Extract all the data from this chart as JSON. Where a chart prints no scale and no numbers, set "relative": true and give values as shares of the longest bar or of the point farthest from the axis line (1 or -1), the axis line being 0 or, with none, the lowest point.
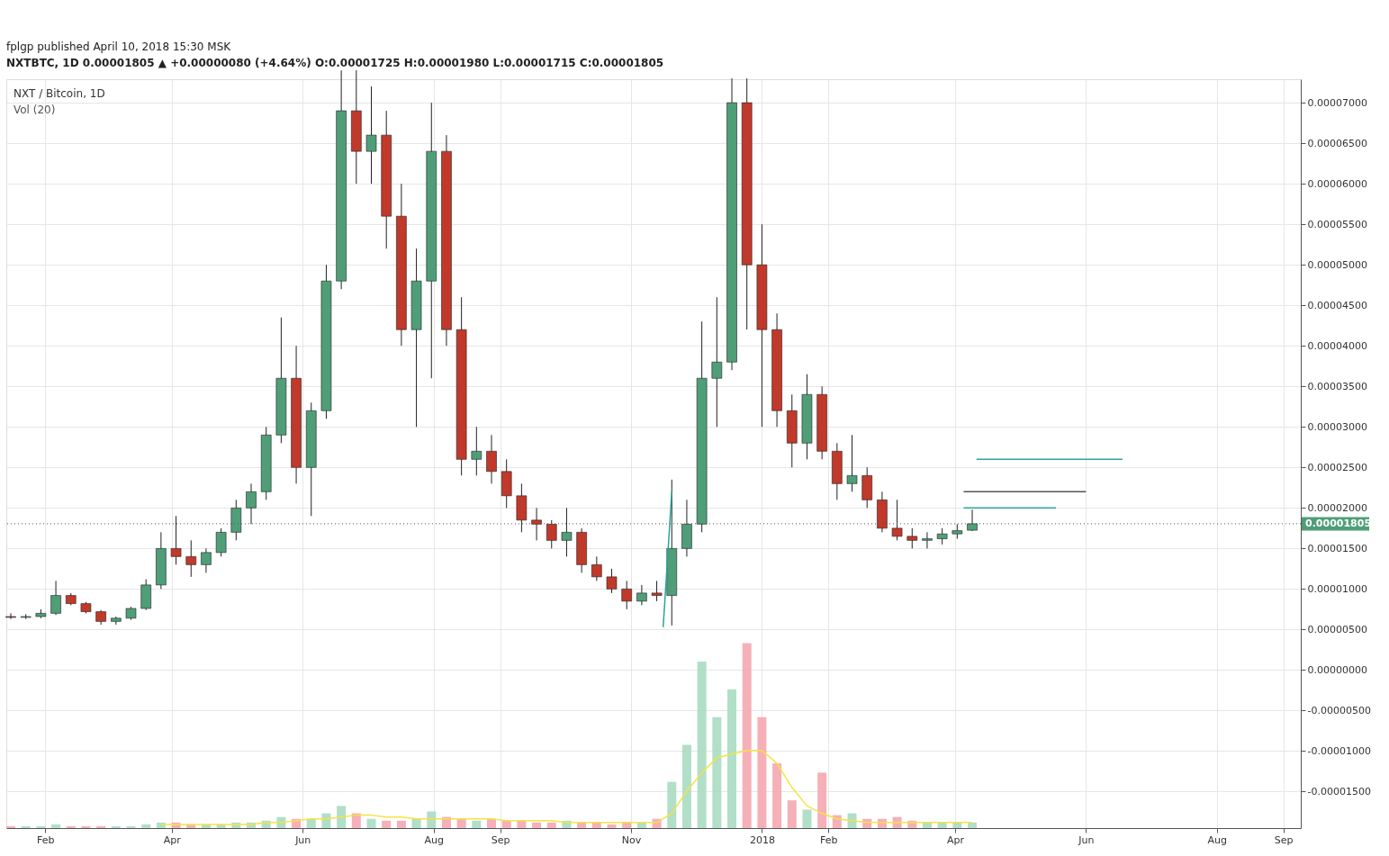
{
  "chart_data": [
    {
      "type": "candlestick",
      "title": "NXT / Bitcoin, 1D",
      "annotations": [
        "fplgp published April 10, 2018 15:30 MSK",
        "NXTBTC, 1D 0.00001805 ▲ +0.00000080 (+4.64%) O:0.00001725 H:0.00001980 L:0.00001715 C:0.00001805"
      ],
      "x": [
        "2017-01-16",
        "2017-01-23",
        "2017-01-30",
        "2017-02-06",
        "2017-02-13",
        "2017-02-20",
        "2017-02-27",
        "2017-03-06",
        "2017-03-13",
        "2017-03-20",
        "2017-03-27",
        "2017-04-03",
        "2017-04-10",
        "2017-04-17",
        "2017-04-24",
        "2017-05-01",
        "2017-05-08",
        "2017-05-15",
        "2017-05-22",
        "2017-05-29",
        "2017-06-05",
        "2017-06-12",
        "2017-06-19",
        "2017-06-26",
        "2017-07-03",
        "2017-07-10",
        "2017-07-17",
        "2017-07-24",
        "2017-07-31",
        "2017-08-07",
        "2017-08-14",
        "2017-08-21",
        "2017-08-28",
        "2017-09-04",
        "2017-09-11",
        "2017-09-18",
        "2017-09-25",
        "2017-10-02",
        "2017-10-09",
        "2017-10-16",
        "2017-10-23",
        "2017-10-30",
        "2017-11-06",
        "2017-11-13",
        "2017-11-20",
        "2017-11-27",
        "2017-12-04",
        "2017-12-11",
        "2017-12-18",
        "2017-12-25",
        "2018-01-01",
        "2018-01-08",
        "2018-01-15",
        "2018-01-22",
        "2018-01-29",
        "2018-02-05",
        "2018-02-12",
        "2018-02-19",
        "2018-02-26",
        "2018-03-05",
        "2018-03-12",
        "2018-03-19",
        "2018-03-26",
        "2018-04-02",
        "2018-04-09"
      ],
      "ohlc": [
        [
          6.6e-06,
          7e-06,
          6.3e-06,
          6.5e-06
        ],
        [
          6.5e-06,
          6.9e-06,
          6.3e-06,
          6.6e-06
        ],
        [
          6.6e-06,
          7.5e-06,
          6.4e-06,
          7e-06
        ],
        [
          7e-06,
          1.1e-05,
          6.8e-06,
          9.2e-06
        ],
        [
          9.2e-06,
          9.5e-06,
          8e-06,
          8.2e-06
        ],
        [
          8.2e-06,
          8.4e-06,
          7e-06,
          7.2e-06
        ],
        [
          7.2e-06,
          7.4e-06,
          5.6e-06,
          6e-06
        ],
        [
          6e-06,
          6.6e-06,
          5.6e-06,
          6.4e-06
        ],
        [
          6.4e-06,
          7.8e-06,
          6.2e-06,
          7.6e-06
        ],
        [
          7.6e-06,
          1.12e-05,
          7.4e-06,
          1.05e-05
        ],
        [
          1.05e-05,
          1.7e-05,
          1e-05,
          1.5e-05
        ],
        [
          1.5e-05,
          1.9e-05,
          1.3e-05,
          1.4e-05
        ],
        [
          1.4e-05,
          1.6e-05,
          1.15e-05,
          1.3e-05
        ],
        [
          1.3e-05,
          1.5e-05,
          1.2e-05,
          1.45e-05
        ],
        [
          1.45e-05,
          1.75e-05,
          1.4e-05,
          1.7e-05
        ],
        [
          1.7e-05,
          2.1e-05,
          1.6e-05,
          2e-05
        ],
        [
          2e-05,
          2.3e-05,
          1.8e-05,
          2.2e-05
        ],
        [
          2.2e-05,
          3e-05,
          2.1e-05,
          2.9e-05
        ],
        [
          2.9e-05,
          4.35e-05,
          2.8e-05,
          3.6e-05
        ],
        [
          3.6e-05,
          4e-05,
          2.3e-05,
          2.5e-05
        ],
        [
          2.5e-05,
          3.3e-05,
          1.9e-05,
          3.2e-05
        ],
        [
          3.2e-05,
          5e-05,
          3.1e-05,
          4.8e-05
        ],
        [
          4.8e-05,
          7.4e-05,
          4.7e-05,
          6.9e-05
        ],
        [
          6.9e-05,
          7.4e-05,
          6e-05,
          6.4e-05
        ],
        [
          6.4e-05,
          7.2e-05,
          6e-05,
          6.6e-05
        ],
        [
          6.6e-05,
          6.9e-05,
          5.2e-05,
          5.6e-05
        ],
        [
          5.6e-05,
          6e-05,
          4e-05,
          4.2e-05
        ],
        [
          4.2e-05,
          5.2e-05,
          3e-05,
          4.8e-05
        ],
        [
          4.8e-05,
          7e-05,
          3.6e-05,
          6.4e-05
        ],
        [
          6.4e-05,
          6.6e-05,
          4e-05,
          4.2e-05
        ],
        [
          4.2e-05,
          4.6e-05,
          2.4e-05,
          2.6e-05
        ],
        [
          2.6e-05,
          3e-05,
          2.4e-05,
          2.7e-05
        ],
        [
          2.7e-05,
          2.9e-05,
          2.3e-05,
          2.45e-05
        ],
        [
          2.45e-05,
          2.6e-05,
          2e-05,
          2.15e-05
        ],
        [
          2.15e-05,
          2.3e-05,
          1.7e-05,
          1.85e-05
        ],
        [
          1.85e-05,
          2e-05,
          1.6e-05,
          1.8e-05
        ],
        [
          1.8e-05,
          1.85e-05,
          1.5e-05,
          1.6e-05
        ],
        [
          1.6e-05,
          2e-05,
          1.4e-05,
          1.7e-05
        ],
        [
          1.7e-05,
          1.75e-05,
          1.2e-05,
          1.3e-05
        ],
        [
          1.3e-05,
          1.4e-05,
          1.1e-05,
          1.15e-05
        ],
        [
          1.15e-05,
          1.25e-05,
          9.5e-06,
          1e-05
        ],
        [
          1e-05,
          1.1e-05,
          7.5e-06,
          8.5e-06
        ],
        [
          8.5e-06,
          1.05e-05,
          8e-06,
          9.5e-06
        ],
        [
          9.5e-06,
          1.1e-05,
          8.5e-06,
          9.2e-06
        ],
        [
          9.2e-06,
          2.35e-05,
          5.5e-06,
          1.5e-05
        ],
        [
          1.5e-05,
          2.1e-05,
          1.4e-05,
          1.8e-05
        ],
        [
          1.8e-05,
          4.3e-05,
          1.7e-05,
          3.6e-05
        ],
        [
          3.6e-05,
          4.6e-05,
          3e-05,
          3.8e-05
        ],
        [
          3.8e-05,
          7.3e-05,
          3.7e-05,
          7e-05
        ],
        [
          7e-05,
          7.3e-05,
          4.2e-05,
          5e-05
        ],
        [
          5e-05,
          5.5e-05,
          3e-05,
          4.2e-05
        ],
        [
          4.2e-05,
          4.4e-05,
          3e-05,
          3.2e-05
        ],
        [
          3.2e-05,
          3.4e-05,
          2.5e-05,
          2.8e-05
        ],
        [
          2.8e-05,
          3.65e-05,
          2.6e-05,
          3.4e-05
        ],
        [
          3.4e-05,
          3.5e-05,
          2.6e-05,
          2.7e-05
        ],
        [
          2.7e-05,
          2.8e-05,
          2.1e-05,
          2.3e-05
        ],
        [
          2.3e-05,
          2.9e-05,
          2.2e-05,
          2.4e-05
        ],
        [
          2.4e-05,
          2.5e-05,
          2e-05,
          2.1e-05
        ],
        [
          2.1e-05,
          2.2e-05,
          1.7e-05,
          1.75e-05
        ],
        [
          1.75e-05,
          2.1e-05,
          1.6e-05,
          1.65e-05
        ],
        [
          1.65e-05,
          1.75e-05,
          1.5e-05,
          1.6e-05
        ],
        [
          1.6e-05,
          1.7e-05,
          1.5e-05,
          1.62e-05
        ],
        [
          1.62e-05,
          1.75e-05,
          1.55e-05,
          1.68e-05
        ],
        [
          1.68e-05,
          1.8e-05,
          1.62e-05,
          1.72e-05
        ],
        [
          1.725e-05,
          1.98e-05,
          1.715e-05,
          1.805e-05
        ]
      ],
      "colors": [
        "#c0392b",
        "#4f9e78",
        "#4f9e78",
        "#4f9e78",
        "#c0392b",
        "#c0392b",
        "#c0392b",
        "#4f9e78",
        "#4f9e78",
        "#4f9e78",
        "#4f9e78",
        "#c0392b",
        "#c0392b",
        "#4f9e78",
        "#4f9e78",
        "#4f9e78",
        "#4f9e78",
        "#4f9e78",
        "#4f9e78",
        "#c0392b",
        "#4f9e78",
        "#4f9e78",
        "#4f9e78",
        "#c0392b",
        "#4f9e78",
        "#c0392b",
        "#c0392b",
        "#4f9e78",
        "#4f9e78",
        "#c0392b",
        "#c0392b",
        "#4f9e78",
        "#c0392b",
        "#c0392b",
        "#c0392b",
        "#c0392b",
        "#c0392b",
        "#4f9e78",
        "#c0392b",
        "#c0392b",
        "#c0392b",
        "#c0392b",
        "#4f9e78",
        "#c0392b",
        "#4f9e78",
        "#4f9e78",
        "#4f9e78",
        "#4f9e78",
        "#4f9e78",
        "#c0392b",
        "#c0392b",
        "#c0392b",
        "#c0392b",
        "#4f9e78",
        "#c0392b",
        "#c0392b",
        "#4f9e78",
        "#c0392b",
        "#c0392b",
        "#c0392b",
        "#c0392b",
        "#4f9e78",
        "#4f9e78",
        "#4f9e78",
        "#4f9e78"
      ],
      "series": [
        {
          "type": "line",
          "color": "#26a69a",
          "x": [
            "2018-04-11",
            "2018-06-18"
          ],
          "values": [
            2.6e-05,
            2.6e-05
          ]
        },
        {
          "type": "line",
          "color": "#555555",
          "x": [
            "2018-04-05",
            "2018-06-01"
          ],
          "values": [
            2.2e-05,
            2.2e-05
          ]
        },
        {
          "type": "line",
          "color": "#26a69a",
          "x": [
            "2018-04-05",
            "2018-05-18"
          ],
          "values": [
            2e-05,
            2e-05
          ]
        },
        {
          "type": "line",
          "color": "#26a69a",
          "x": [
            "2017-11-16",
            "2017-11-20"
          ],
          "values": [
            5.3e-06,
            2.2e-05
          ]
        }
      ],
      "ref_lines": [
        {
          "axis": "y",
          "value": 1.805e-05,
          "label": "0.00001805",
          "color": "#555555",
          "line_style": "dotted"
        }
      ],
      "xlim": [
        "2017-01-16",
        "2018-09-07"
      ],
      "xticks": [
        {
          "value": "2017-02-01",
          "label": "Feb"
        },
        {
          "value": "2017-04-01",
          "label": "Apr"
        },
        {
          "value": "2017-06-01",
          "label": "Jun"
        },
        {
          "value": "2017-08-01",
          "label": "Aug"
        },
        {
          "value": "2017-09-01",
          "label": "Sep"
        },
        {
          "value": "2017-11-01",
          "label": "Nov"
        },
        {
          "value": "2018-01-01",
          "label": "2018"
        },
        {
          "value": "2018-02-01",
          "label": "Feb"
        },
        {
          "value": "2018-04-01",
          "label": "Apr"
        },
        {
          "value": "2018-06-01",
          "label": "Jun"
        },
        {
          "value": "2018-08-01",
          "label": "Aug"
        },
        {
          "value": "2018-09-01",
          "label": "Sep"
        }
      ],
      "ylim": [
        -1.95e-05,
        7.29e-05
      ],
      "yticks": [
        {
          "value": -1.5e-05,
          "label": "-0.00001500"
        },
        {
          "value": -1e-05,
          "label": "-0.00001000"
        },
        {
          "value": -5e-06,
          "label": "-0.00000500"
        },
        {
          "value": 0,
          "label": "0.00000000"
        },
        {
          "value": 5e-06,
          "label": "0.00000500"
        },
        {
          "value": 1e-05,
          "label": "0.00001000"
        },
        {
          "value": 1.5e-05,
          "label": "0.00001500"
        },
        {
          "value": 2e-05,
          "label": "0.00002000"
        },
        {
          "value": 2.5e-05,
          "label": "0.00002500"
        },
        {
          "value": 3e-05,
          "label": "0.00003000"
        },
        {
          "value": 3.5e-05,
          "label": "0.00003500"
        },
        {
          "value": 4e-05,
          "label": "0.00004000"
        },
        {
          "value": 4.5e-05,
          "label": "0.00004500"
        },
        {
          "value": 5e-05,
          "label": "0.00005000"
        },
        {
          "value": 5.5e-05,
          "label": "0.00005500"
        },
        {
          "value": 6e-05,
          "label": "0.00006000"
        },
        {
          "value": 6.5e-05,
          "label": "0.00006500"
        },
        {
          "value": 7e-05,
          "label": "0.00007000"
        }
      ],
      "grid": true,
      "legend": false
    },
    {
      "type": "bar",
      "relative": true,
      "title": "Vol (20)",
      "tick_labels": false,
      "xlim": [
        "2017-01-16",
        "2018-09-07"
      ],
      "x": [
        "2017-01-16",
        "2017-01-23",
        "2017-01-30",
        "2017-02-06",
        "2017-02-13",
        "2017-02-20",
        "2017-02-27",
        "2017-03-06",
        "2017-03-13",
        "2017-03-20",
        "2017-03-27",
        "2017-04-03",
        "2017-04-10",
        "2017-04-17",
        "2017-04-24",
        "2017-05-01",
        "2017-05-08",
        "2017-05-15",
        "2017-05-22",
        "2017-05-29",
        "2017-06-05",
        "2017-06-12",
        "2017-06-19",
        "2017-06-26",
        "2017-07-03",
        "2017-07-10",
        "2017-07-17",
        "2017-07-24",
        "2017-07-31",
        "2017-08-07",
        "2017-08-14",
        "2017-08-21",
        "2017-08-28",
        "2017-09-04",
        "2017-09-11",
        "2017-09-18",
        "2017-09-25",
        "2017-10-02",
        "2017-10-09",
        "2017-10-16",
        "2017-10-23",
        "2017-10-30",
        "2017-11-06",
        "2017-11-13",
        "2017-11-20",
        "2017-11-27",
        "2017-12-04",
        "2017-12-11",
        "2017-12-18",
        "2017-12-25",
        "2018-01-01",
        "2018-01-08",
        "2018-01-15",
        "2018-01-22",
        "2018-01-29",
        "2018-02-05",
        "2018-02-12",
        "2018-02-19",
        "2018-02-26",
        "2018-03-05",
        "2018-03-12",
        "2018-03-19",
        "2018-03-26",
        "2018-04-02",
        "2018-04-09"
      ],
      "series": [
        {
          "type": "bar",
          "colors": [
            "#f4a7b0",
            "#a8dcc2",
            "#a8dcc2",
            "#a8dcc2",
            "#f4a7b0",
            "#f4a7b0",
            "#f4a7b0",
            "#a8dcc2",
            "#a8dcc2",
            "#a8dcc2",
            "#a8dcc2",
            "#f4a7b0",
            "#f4a7b0",
            "#a8dcc2",
            "#a8dcc2",
            "#a8dcc2",
            "#a8dcc2",
            "#a8dcc2",
            "#a8dcc2",
            "#f4a7b0",
            "#a8dcc2",
            "#a8dcc2",
            "#a8dcc2",
            "#f4a7b0",
            "#a8dcc2",
            "#f4a7b0",
            "#f4a7b0",
            "#a8dcc2",
            "#a8dcc2",
            "#f4a7b0",
            "#f4a7b0",
            "#a8dcc2",
            "#f4a7b0",
            "#f4a7b0",
            "#f4a7b0",
            "#f4a7b0",
            "#f4a7b0",
            "#a8dcc2",
            "#f4a7b0",
            "#f4a7b0",
            "#f4a7b0",
            "#f4a7b0",
            "#a8dcc2",
            "#f4a7b0",
            "#a8dcc2",
            "#a8dcc2",
            "#a8dcc2",
            "#a8dcc2",
            "#a8dcc2",
            "#f4a7b0",
            "#f4a7b0",
            "#f4a7b0",
            "#f4a7b0",
            "#a8dcc2",
            "#f4a7b0",
            "#f4a7b0",
            "#a8dcc2",
            "#f4a7b0",
            "#f4a7b0",
            "#f4a7b0",
            "#f4a7b0",
            "#a8dcc2",
            "#a8dcc2",
            "#a8dcc2",
            "#a8dcc2"
          ],
          "values": [
            0.01,
            0.01,
            0.01,
            0.02,
            0.01,
            0.01,
            0.01,
            0.01,
            0.01,
            0.02,
            0.03,
            0.03,
            0.02,
            0.02,
            0.02,
            0.03,
            0.03,
            0.04,
            0.06,
            0.05,
            0.05,
            0.08,
            0.12,
            0.08,
            0.05,
            0.04,
            0.04,
            0.05,
            0.09,
            0.06,
            0.05,
            0.04,
            0.05,
            0.04,
            0.04,
            0.03,
            0.03,
            0.04,
            0.03,
            0.03,
            0.02,
            0.03,
            0.03,
            0.05,
            0.25,
            0.45,
            0.9,
            0.6,
            0.75,
            1,
            0.6,
            0.35,
            0.15,
            0.1,
            0.3,
            0.07,
            0.08,
            0.05,
            0.05,
            0.06,
            0.04,
            0.03,
            0.03,
            0.03,
            0.03
          ]
        },
        {
          "type": "line",
          "color": "#f5e342",
          "values": [
            null,
            null,
            null,
            null,
            null,
            null,
            null,
            null,
            null,
            null,
            0.02,
            0.02,
            0.02,
            0.02,
            0.02,
            0.02,
            0.02,
            0.03,
            0.03,
            0.04,
            0.05,
            0.05,
            0.06,
            0.07,
            0.07,
            0.06,
            0.06,
            0.05,
            0.05,
            0.05,
            0.05,
            0.05,
            0.05,
            0.04,
            0.04,
            0.04,
            0.04,
            0.03,
            0.03,
            0.03,
            0.03,
            0.03,
            0.03,
            0.03,
            0.08,
            0.2,
            0.3,
            0.38,
            0.4,
            0.42,
            0.42,
            0.35,
            0.22,
            0.12,
            0.08,
            0.05,
            0.04,
            0.03,
            0.03,
            0.03,
            0.03,
            0.03,
            0.03,
            0.03,
            0.03
          ]
        }
      ],
      "legend": false
    }
  ]
}
